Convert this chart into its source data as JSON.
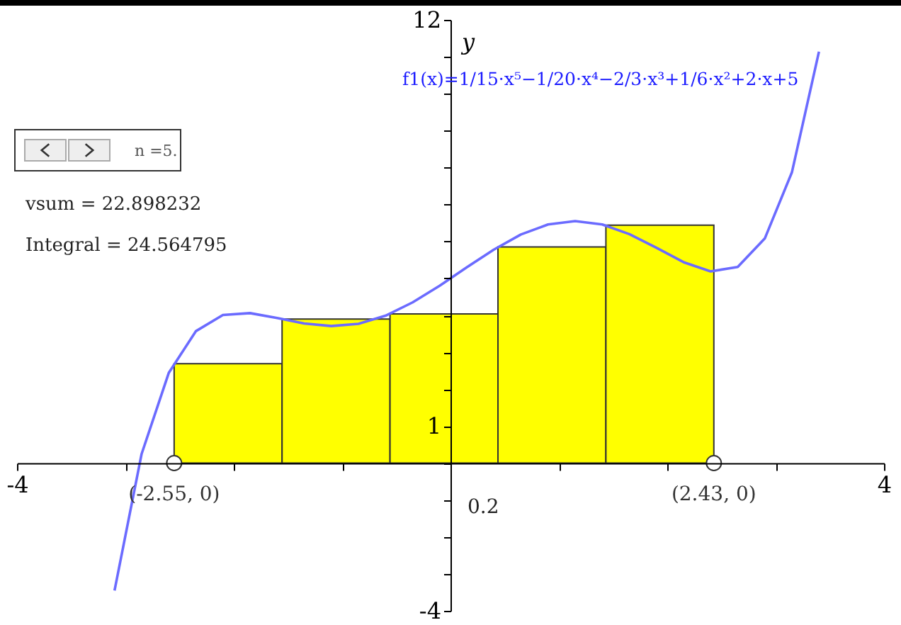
{
  "chart_data": {
    "type": "bar",
    "ylabel": "y",
    "annotations": [
      "f1(x)=1/15·x⁵−1/20·x⁴−2/3·x³+1/6·x²+2·x+5",
      "n =5.",
      "vsum = 22.898232",
      "Integral = 24.564795",
      "0.2",
      {
        "text": "(-2.55, 0)",
        "x": -2.55,
        "y": 0
      },
      {
        "text": "(2.43, 0)",
        "x": 2.43,
        "y": 0
      }
    ],
    "xlim": [
      -4,
      4
    ],
    "ylim": [
      -4,
      12
    ],
    "xticks": [
      -4,
      {
        "value": -3,
        "label": null
      },
      {
        "value": -2,
        "label": null
      },
      {
        "value": -1,
        "label": null
      },
      {
        "value": 0,
        "label": null
      },
      {
        "value": 1,
        "label": null
      },
      {
        "value": 2,
        "label": null
      },
      {
        "value": 3,
        "label": null
      },
      4
    ],
    "yticks": [
      -4,
      {
        "value": -3,
        "label": null
      },
      {
        "value": -2,
        "label": null
      },
      {
        "value": -1,
        "label": null
      },
      {
        "value": 0,
        "label": null
      },
      1,
      {
        "value": 2,
        "label": null
      },
      {
        "value": 3,
        "label": null
      },
      {
        "value": 4,
        "label": null
      },
      {
        "value": 5,
        "label": null
      },
      {
        "value": 6,
        "label": null
      },
      {
        "value": 7,
        "label": null
      },
      {
        "value": 8,
        "label": null
      },
      {
        "value": 9,
        "label": null
      },
      {
        "value": 10,
        "label": null
      },
      {
        "value": 11,
        "label": null
      },
      12
    ],
    "series": [
      {
        "color": "#ffff00",
        "x": [
          -2.052,
          -1.056,
          -0.06,
          0.936,
          1.932
        ],
        "values": [
          2.69,
          3.9,
          4.04,
          5.85,
          6.44
        ]
      },
      {
        "type": "line",
        "color": "#6b6bff",
        "x": [
          -3.1,
          -2.85,
          -2.6,
          -2.35,
          -2.1,
          -1.85,
          -1.6,
          -1.35,
          -1.1,
          -0.85,
          -0.6,
          -0.35,
          -0.1,
          0.15,
          0.4,
          0.65,
          0.9,
          1.15,
          1.4,
          1.65,
          1.9,
          2.15,
          2.4,
          2.65,
          2.9,
          3.15,
          3.4
        ],
        "values": [
          -3.45,
          0.25,
          2.44,
          3.57,
          4.01,
          4.06,
          3.93,
          3.78,
          3.71,
          3.77,
          3.99,
          4.35,
          4.8,
          5.3,
          5.78,
          6.19,
          6.46,
          6.55,
          6.46,
          6.2,
          5.83,
          5.44,
          5.19,
          5.31,
          6.08,
          7.87,
          11.14
        ]
      },
      {
        "type": "scatter",
        "color": "#ffffff",
        "marker": "circle",
        "x": [
          -2.55,
          2.43
        ],
        "values": [
          0,
          0
        ]
      }
    ]
  }
}
